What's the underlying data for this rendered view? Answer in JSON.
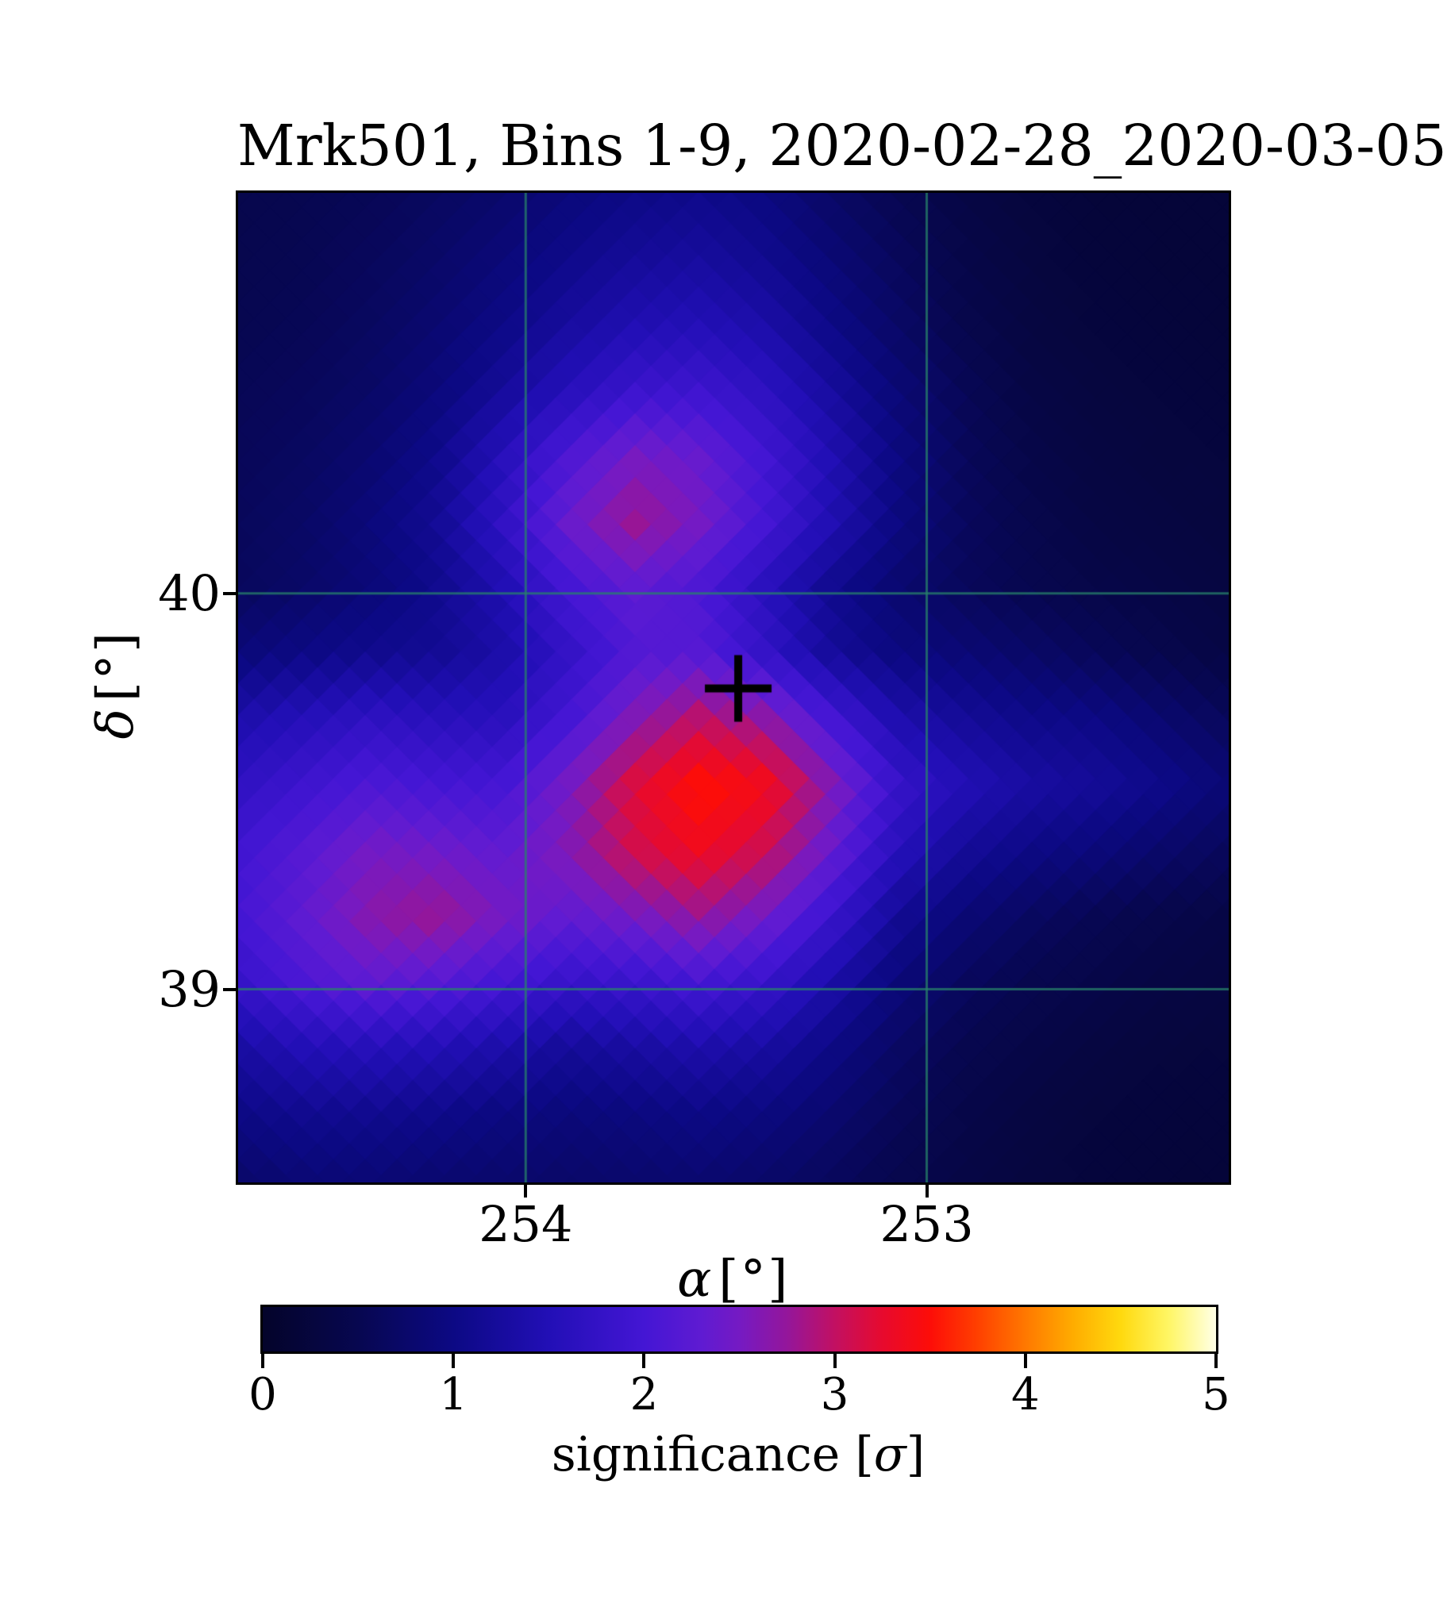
{
  "figure": {
    "title": "Mrk501, Bins 1-9, 2020-02-28_2020-03-05",
    "background_color": "#ffffff"
  },
  "axes": {
    "xlabel_symbol": "α",
    "xlabel_unit": "[°]",
    "ylabel_symbol": "δ",
    "ylabel_unit": "[°]",
    "xticks": [
      {
        "value": 254,
        "label": "254"
      },
      {
        "value": 253,
        "label": "253"
      }
    ],
    "yticks": [
      {
        "value": 40,
        "label": "40"
      },
      {
        "value": 39,
        "label": "39"
      }
    ],
    "grid_color": "rgba(40,130,105,0.75)",
    "spine_color": "#000000"
  },
  "colorbar": {
    "label_prefix": "significance [",
    "label_symbol": "σ",
    "label_suffix": "]",
    "range": [
      0,
      5
    ],
    "ticks": [
      {
        "value": 0,
        "label": "0"
      },
      {
        "value": 1,
        "label": "1"
      },
      {
        "value": 2,
        "label": "2"
      },
      {
        "value": 3,
        "label": "3"
      },
      {
        "value": 4,
        "label": "4"
      },
      {
        "value": 5,
        "label": "5"
      }
    ]
  },
  "chart_data": {
    "type": "heatmap",
    "title": "Mrk501, Bins 1-9, 2020-02-28_2020-03-05",
    "xlabel": "α [°]",
    "ylabel": "δ [°]",
    "x_axis_inverted": true,
    "x_range_deg": [
      254.717,
      252.247
    ],
    "y_range_deg": [
      41.012,
      38.512
    ],
    "x_ticks_deg": [
      254,
      253
    ],
    "y_ticks_deg": [
      40,
      39
    ],
    "colorbar_label": "significance [σ]",
    "colorbar_range": [
      0,
      5
    ],
    "colorbar_ticks": [
      0,
      1,
      2,
      3,
      4,
      5
    ],
    "marker": {
      "symbol": "+",
      "ra_deg": 253.47,
      "dec_deg": 39.76,
      "color": "#000000"
    },
    "colormap_stops": [
      [
        0.0,
        4,
        4,
        42
      ],
      [
        0.5,
        7,
        7,
        80
      ],
      [
        1.0,
        12,
        9,
        132
      ],
      [
        1.5,
        34,
        15,
        182
      ],
      [
        2.0,
        68,
        22,
        212
      ],
      [
        2.3,
        95,
        27,
        210
      ],
      [
        2.5,
        117,
        26,
        195
      ],
      [
        2.75,
        148,
        22,
        155
      ],
      [
        3.0,
        194,
        16,
        98
      ],
      [
        3.25,
        231,
        10,
        46
      ],
      [
        3.5,
        253,
        13,
        8
      ],
      [
        3.75,
        255,
        64,
        0
      ],
      [
        4.0,
        255,
        120,
        0
      ],
      [
        4.25,
        255,
        172,
        0
      ],
      [
        4.5,
        255,
        217,
        14
      ],
      [
        4.75,
        255,
        246,
        100
      ],
      [
        5.0,
        255,
        255,
        230
      ]
    ],
    "significance_grid": {
      "rows": 16,
      "cols": 16,
      "values": [
        [
          0.45,
          0.5,
          0.55,
          0.65,
          0.75,
          0.9,
          1.0,
          1.05,
          0.95,
          0.7,
          0.5,
          0.35,
          0.25,
          0.2,
          0.2,
          0.2
        ],
        [
          0.48,
          0.52,
          0.6,
          0.72,
          0.88,
          1.05,
          1.2,
          1.25,
          1.1,
          0.85,
          0.6,
          0.4,
          0.28,
          0.22,
          0.2,
          0.2
        ],
        [
          0.5,
          0.55,
          0.65,
          0.8,
          1.0,
          1.25,
          1.45,
          1.5,
          1.35,
          1.0,
          0.7,
          0.45,
          0.3,
          0.25,
          0.22,
          0.2
        ],
        [
          0.55,
          0.6,
          0.7,
          0.9,
          1.2,
          1.55,
          1.85,
          1.9,
          1.65,
          1.25,
          0.85,
          0.55,
          0.35,
          0.28,
          0.25,
          0.22
        ],
        [
          0.58,
          0.65,
          0.8,
          1.05,
          1.55,
          2.1,
          2.5,
          2.35,
          1.95,
          1.45,
          0.95,
          0.6,
          0.4,
          0.3,
          0.27,
          0.25
        ],
        [
          0.6,
          0.7,
          0.9,
          1.15,
          1.7,
          2.4,
          2.8,
          2.5,
          2.0,
          1.45,
          0.95,
          0.62,
          0.45,
          0.33,
          0.3,
          0.27
        ],
        [
          0.62,
          0.72,
          0.88,
          1.08,
          1.45,
          2.0,
          2.3,
          2.1,
          1.6,
          1.1,
          0.8,
          0.6,
          0.48,
          0.4,
          0.35,
          0.3
        ],
        [
          0.9,
          1.0,
          1.1,
          1.15,
          1.35,
          1.75,
          2.15,
          2.2,
          1.75,
          1.2,
          0.95,
          0.85,
          0.72,
          0.58,
          0.45,
          0.35
        ],
        [
          1.4,
          1.55,
          1.7,
          1.6,
          1.6,
          2.0,
          2.6,
          3.0,
          2.7,
          2.0,
          1.4,
          1.2,
          1.05,
          1.0,
          0.8,
          0.6
        ],
        [
          1.7,
          1.9,
          2.1,
          2.0,
          2.0,
          2.5,
          3.2,
          3.55,
          3.4,
          2.6,
          1.8,
          1.5,
          1.3,
          1.2,
          1.05,
          0.85
        ],
        [
          1.95,
          2.2,
          2.5,
          2.45,
          2.3,
          2.6,
          3.1,
          3.35,
          3.05,
          2.35,
          1.55,
          1.2,
          1.0,
          0.9,
          0.75,
          0.6
        ],
        [
          2.0,
          2.3,
          2.65,
          2.8,
          2.5,
          2.3,
          2.5,
          2.75,
          2.45,
          1.85,
          1.15,
          0.85,
          0.65,
          0.52,
          0.42,
          0.36
        ],
        [
          1.8,
          2.1,
          2.3,
          2.2,
          2.0,
          1.8,
          1.85,
          2.0,
          1.8,
          1.35,
          0.88,
          0.62,
          0.47,
          0.4,
          0.32,
          0.3
        ],
        [
          1.3,
          1.5,
          1.55,
          1.5,
          1.35,
          1.2,
          1.28,
          1.38,
          1.28,
          1.0,
          0.68,
          0.48,
          0.37,
          0.3,
          0.26,
          0.25
        ],
        [
          1.0,
          1.1,
          1.1,
          1.05,
          0.95,
          0.9,
          0.94,
          1.0,
          0.94,
          0.78,
          0.56,
          0.4,
          0.3,
          0.25,
          0.23,
          0.22
        ],
        [
          0.75,
          0.85,
          0.85,
          0.8,
          0.77,
          0.73,
          0.77,
          0.8,
          0.73,
          0.62,
          0.46,
          0.35,
          0.28,
          0.23,
          0.2,
          0.2
        ]
      ]
    }
  }
}
